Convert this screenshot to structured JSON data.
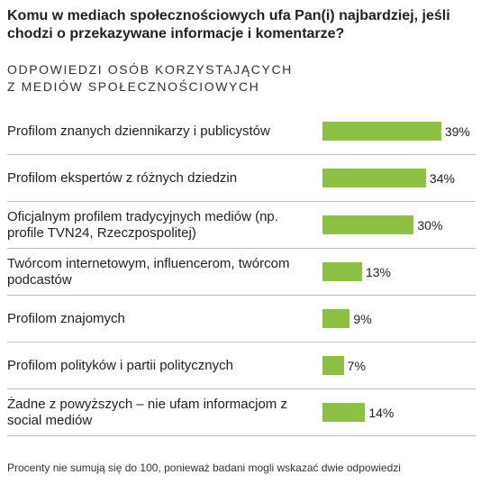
{
  "chart_data": {
    "type": "bar",
    "title": "Komu w mediach społecznościowych ufa Pan(i) najbardziej, jeśli chodzi o przekazywane informacje i komentarze?",
    "subtitle": "ODPOWIEDZI OSÓB KORZYSTAJĄCYCH Z MEDIÓW SPOŁECZNOŚCIOWYCH",
    "categories": [
      "Profilom znanych dziennikarzy i publicystów",
      "Profilom ekspertów z różnych dziedzin",
      "Oficjalnym profilem tradycyjnych mediów (np. profile TVN24, Rzeczpospolitej)",
      "Twórcom internetowym, influencerom, twórcom podcastów",
      "Profilom znajomych",
      "Profilom polityków i partii politycznych",
      "Żadne z powyższych – nie ufam informacjom z social mediów"
    ],
    "values": [
      39,
      34,
      30,
      13,
      9,
      7,
      14
    ],
    "value_labels": [
      "39%",
      "34%",
      "30%",
      "13%",
      "9%",
      "7%",
      "14%"
    ],
    "color": "#8dc045",
    "note": "Procenty nie sumują się do 100, ponieważ badani mogli wskazać dwie odpowiedzi"
  }
}
